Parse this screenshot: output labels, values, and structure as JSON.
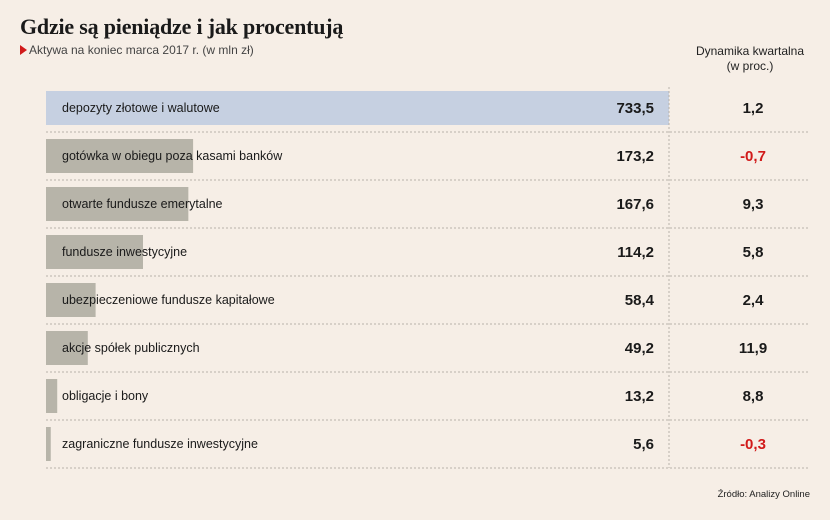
{
  "header": {
    "title": "Gdzie są pieniądze i jak procentują",
    "subtitle": "Aktywa na koniec marca 2017 r. (w mln zł)",
    "dynamics_label_1": "Dynamika kwartalna",
    "dynamics_label_2": "(w proc.)"
  },
  "source": "Źródło: Analizy Online",
  "colors": {
    "highlight_bar": "#c6d0e1",
    "bar": "#b7b4a9",
    "negative": "#d11a1a",
    "divider": "#b8b2aa"
  },
  "chart_data": {
    "type": "bar",
    "orientation": "horizontal",
    "title": "Gdzie są pieniądze i jak procentują",
    "subtitle": "Aktywa na koniec marca 2017 r. (w mln zł)",
    "categories": [
      "depozyty złotowe i walutowe",
      "gotówka w obiegu poza kasami banków",
      "otwarte fundusze emerytalne",
      "fundusze inwestycyjne",
      "ubezpieczeniowe fundusze kapitałowe",
      "akcje spółek publicznych",
      "obligacje i bony",
      "zagraniczne fundusze inwestycyjne"
    ],
    "series": [
      {
        "name": "Aktywa na koniec marca 2017 r. (w mln zł)",
        "values": [
          733.5,
          173.2,
          167.6,
          114.2,
          58.4,
          49.2,
          13.2,
          5.6
        ],
        "labels": [
          "733,5",
          "173,2",
          "167,6",
          "114,2",
          "58,4",
          "49,2",
          "13,2",
          "5,6"
        ]
      },
      {
        "name": "Dynamika kwartalna (w proc.)",
        "values": [
          1.2,
          -0.7,
          9.3,
          5.8,
          2.4,
          11.9,
          8.8,
          -0.3
        ],
        "labels": [
          "1,2",
          "-0,7",
          "9,3",
          "5,8",
          "2,4",
          "11,9",
          "8,8",
          "-0,3"
        ]
      }
    ],
    "xlim": [
      0,
      733.5
    ],
    "highlight_index": 0
  }
}
